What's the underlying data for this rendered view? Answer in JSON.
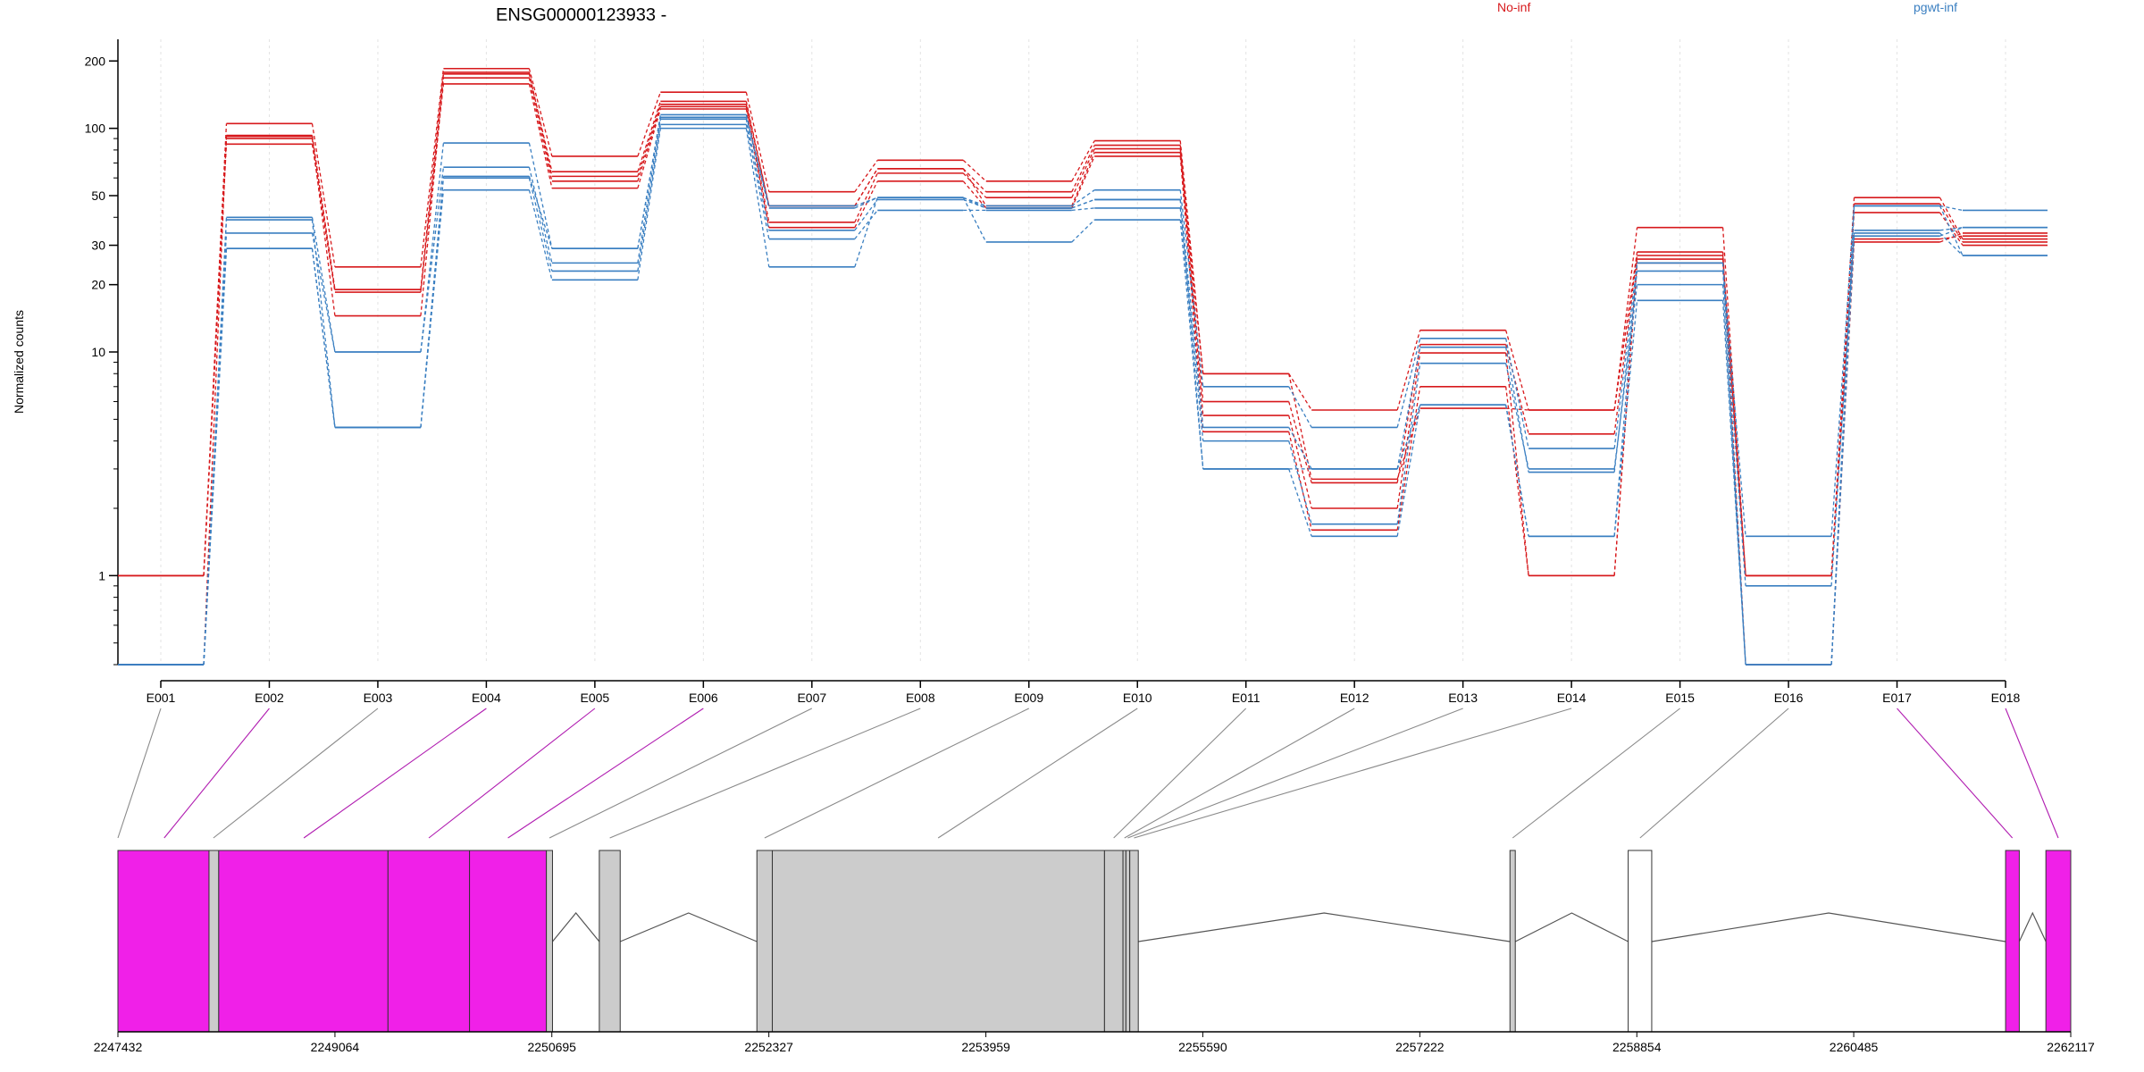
{
  "chart_data": {
    "type": "line",
    "title": "ENSG00000123933 -",
    "ylabel": "Normalized counts",
    "xlabel": "",
    "y_scale": "log",
    "ylim": [
      0.4,
      250
    ],
    "y_ticks": [
      1,
      10,
      20,
      30,
      50,
      100,
      200
    ],
    "grid": "vertical dotted",
    "legend_placement": "top-right",
    "colors": {
      "No-inf": "#d7191c",
      "pgwt-inf": "#3a7fc1",
      "exon_diff": "#f020e8",
      "exon": "#cccccc",
      "intron": "#555555"
    },
    "categories": [
      "E001",
      "E002",
      "E003",
      "E004",
      "E005",
      "E006",
      "E007",
      "E008",
      "E009",
      "E010",
      "E011",
      "E012",
      "E013",
      "E014",
      "E015",
      "E016",
      "E017",
      "E018"
    ],
    "series": [
      {
        "name": "No-inf",
        "group": "No-inf",
        "values": [
          1,
          105,
          24,
          185,
          75,
          145,
          52,
          72,
          58,
          88,
          8,
          5.5,
          12.5,
          5.5,
          36,
          1,
          49,
          32
        ]
      },
      {
        "name": "No-inf",
        "group": "No-inf",
        "values": [
          1,
          92,
          19,
          175,
          64,
          132,
          45,
          66,
          52,
          84,
          6,
          2.6,
          10.8,
          4.3,
          27,
          1,
          46,
          31
        ]
      },
      {
        "name": "No-inf",
        "group": "No-inf",
        "values": [
          1,
          90,
          14.5,
          168,
          58,
          125,
          38,
          63,
          49,
          81,
          5.2,
          2.0,
          9.9,
          1,
          26,
          1,
          42,
          30
        ]
      },
      {
        "name": "No-inf",
        "group": "No-inf",
        "values": [
          1,
          85,
          18.5,
          158,
          54,
          122,
          36,
          58,
          44,
          75,
          4.4,
          1.6,
          7.0,
          1,
          25,
          1,
          32,
          33
        ]
      },
      {
        "name": "No-inf",
        "group": "No-inf",
        "values": [
          0.4,
          93,
          19,
          178,
          61,
          128,
          45,
          66,
          45,
          78,
          8,
          2.7,
          5.6,
          5.5,
          28,
          0.4,
          31,
          34
        ]
      },
      {
        "name": "pgwt-inf",
        "group": "pgwt-inf",
        "values": [
          0.4,
          40,
          10,
          86,
          29,
          115,
          45,
          49,
          45,
          53,
          7,
          4.6,
          11.5,
          3.7,
          25,
          1.5,
          45,
          43
        ]
      },
      {
        "name": "pgwt-inf",
        "group": "pgwt-inf",
        "values": [
          0.4,
          34,
          10,
          67,
          25,
          110,
          35,
          48,
          44,
          48,
          4.6,
          3.0,
          10.5,
          2.9,
          23,
          0.9,
          35,
          36
        ]
      },
      {
        "name": "pgwt-inf",
        "group": "pgwt-inf",
        "values": [
          0.4,
          29,
          4.6,
          60,
          23,
          104,
          32,
          43,
          43,
          44,
          4.0,
          1.7,
          8.9,
          3.0,
          20,
          0.4,
          33,
          36
        ]
      },
      {
        "name": "pgwt-inf",
        "group": "pgwt-inf",
        "values": [
          0.4,
          39,
          4.6,
          53,
          21,
          100,
          24,
          49,
          31,
          39,
          3.0,
          3.0,
          5.8,
          1.5,
          17,
          0.4,
          34,
          27
        ]
      },
      {
        "name": "pgwt-inf",
        "group": "pgwt-inf",
        "values": [
          0.4,
          29,
          4.6,
          61,
          29,
          112,
          44,
          49,
          44,
          48,
          3.0,
          1.5,
          5.8,
          1.5,
          25,
          0.4,
          45,
          27
        ]
      }
    ],
    "genome_axis": {
      "ticks": [
        2247432,
        2249064,
        2250695,
        2252327,
        2253959,
        2255590,
        2257222,
        2258854,
        2260485,
        2262117
      ],
      "range": [
        2247432,
        2262117
      ]
    },
    "exon_blocks": [
      {
        "start": 2247432,
        "end": 2248117,
        "kind": "diff"
      },
      {
        "start": 2248117,
        "end": 2248190,
        "kind": "exon"
      },
      {
        "start": 2248190,
        "end": 2249463,
        "kind": "diff"
      },
      {
        "start": 2249463,
        "end": 2250076,
        "kind": "diff"
      },
      {
        "start": 2250076,
        "end": 2250654,
        "kind": "diff"
      },
      {
        "start": 2250654,
        "end": 2250700,
        "kind": "exon"
      },
      {
        "start": 2251052,
        "end": 2251209,
        "kind": "exon"
      },
      {
        "start": 2252237,
        "end": 2252353,
        "kind": "exon"
      },
      {
        "start": 2252353,
        "end": 2254851,
        "kind": "exon"
      },
      {
        "start": 2254851,
        "end": 2254990,
        "kind": "exon"
      },
      {
        "start": 2254990,
        "end": 2255012,
        "kind": "exon"
      },
      {
        "start": 2255012,
        "end": 2255041,
        "kind": "exon"
      },
      {
        "start": 2255041,
        "end": 2255105,
        "kind": "exon"
      },
      {
        "start": 2257900,
        "end": 2257940,
        "kind": "exon"
      },
      {
        "start": 2258789,
        "end": 2258966,
        "kind": "white"
      },
      {
        "start": 2261627,
        "end": 2261730,
        "kind": "diff"
      },
      {
        "start": 2261930,
        "end": 2262117,
        "kind": "diff"
      }
    ],
    "introns": [
      [
        2250700,
        2251052
      ],
      [
        2251209,
        2252237
      ],
      [
        2255105,
        2257900
      ],
      [
        2257940,
        2258789
      ],
      [
        2258966,
        2261627
      ],
      [
        2261730,
        2261930
      ]
    ],
    "connectors": [
      {
        "exon": "E001",
        "pos": 2247432,
        "kind": "gray"
      },
      {
        "exon": "E002",
        "pos": 2247780,
        "kind": "diff"
      },
      {
        "exon": "E003",
        "pos": 2248150,
        "kind": "gray"
      },
      {
        "exon": "E004",
        "pos": 2248830,
        "kind": "diff"
      },
      {
        "exon": "E005",
        "pos": 2249770,
        "kind": "diff"
      },
      {
        "exon": "E006",
        "pos": 2250365,
        "kind": "diff"
      },
      {
        "exon": "E007",
        "pos": 2250677,
        "kind": "gray"
      },
      {
        "exon": "E008",
        "pos": 2251131,
        "kind": "gray"
      },
      {
        "exon": "E009",
        "pos": 2252295,
        "kind": "gray"
      },
      {
        "exon": "E010",
        "pos": 2253600,
        "kind": "gray"
      },
      {
        "exon": "E011",
        "pos": 2254920,
        "kind": "gray"
      },
      {
        "exon": "E012",
        "pos": 2255001,
        "kind": "gray"
      },
      {
        "exon": "E013",
        "pos": 2255026,
        "kind": "gray"
      },
      {
        "exon": "E014",
        "pos": 2255073,
        "kind": "gray"
      },
      {
        "exon": "E015",
        "pos": 2257920,
        "kind": "gray"
      },
      {
        "exon": "E016",
        "pos": 2258878,
        "kind": "gray"
      },
      {
        "exon": "E017",
        "pos": 2261678,
        "kind": "diff"
      },
      {
        "exon": "E018",
        "pos": 2262023,
        "kind": "diff"
      }
    ]
  },
  "legend": [
    {
      "label": "No-inf",
      "color": "#d7191c"
    },
    {
      "label": "pgwt-inf",
      "color": "#3a7fc1"
    }
  ]
}
